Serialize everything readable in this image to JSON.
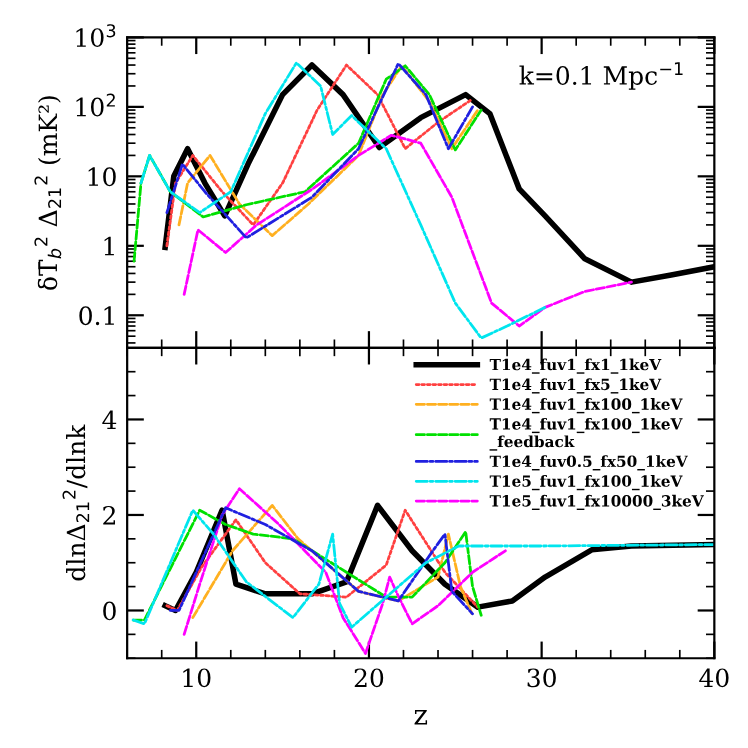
{
  "chart_data": [
    {
      "type": "line",
      "ylabel": "δT̄$_{b}$$^{2}$ Δ$_{21}$$^{2}$ (mK²)",
      "log": "y",
      "xlim": [
        6,
        40
      ],
      "xticks": [
        10,
        20,
        30,
        40
      ],
      "ylim": [
        0.034,
        1000
      ],
      "yticks": [
        0.1,
        1,
        10,
        {
          "value": 100,
          "label": "10$^{2}$"
        },
        {
          "value": 1000,
          "label": "10$^{3}$"
        }
      ],
      "tick_labels": "y",
      "grid": false,
      "legend": false,
      "annotations": [
        "k=0.1 Mpc$^{−1}$"
      ],
      "series": [
        {
          "color": "#000000",
          "line_style": "solid",
          "x": [
            8.2,
            8.7,
            9.5,
            10.5,
            11.65,
            13,
            15,
            16.7,
            18.5,
            20.6,
            23,
            25.6,
            27,
            28.7,
            30.2,
            32.5,
            35.2,
            37.5,
            40
          ],
          "values": [
            0.95,
            10,
            25,
            8,
            2.7,
            15,
            150,
            400,
            150,
            26,
            70,
            150,
            80,
            6.6,
            2.7,
            0.65,
            0.3,
            0.38,
            0.5
          ]
        },
        {
          "color": "#ff4040",
          "line_style": "dotted",
          "x": [
            8.3,
            8.8,
            9.8,
            11.5,
            13.3,
            15,
            17,
            18.7,
            20.5,
            22.1,
            24,
            26
          ],
          "values": [
            1,
            8,
            20,
            6,
            2,
            8,
            90,
            400,
            150,
            25,
            60,
            130
          ]
        },
        {
          "color": "#ffb020",
          "line_style": "dashed",
          "x": [
            9,
            9.5,
            10.8,
            12.5,
            14.4,
            16.5,
            19.4,
            20.8,
            21.9,
            23.5,
            24.8,
            26.3
          ],
          "values": [
            2,
            8,
            20,
            4,
            1.4,
            4,
            20,
            150,
            390,
            120,
            25,
            90
          ]
        },
        {
          "color": "#00e000",
          "line_style": "dashed",
          "x": [
            6.4,
            6.8,
            7.3,
            8.5,
            10.4,
            12.9,
            16.3,
            19.4,
            21,
            22.1,
            23.5,
            25,
            26.5
          ],
          "values": [
            0.6,
            8,
            20,
            6,
            2.6,
            3.9,
            6,
            30,
            250,
            390,
            150,
            24,
            90
          ]
        },
        {
          "color": "#2020e0",
          "line_style": "dashdot",
          "x": [
            8.3,
            9.2,
            10.5,
            12.9,
            16.7,
            19.4,
            21.7,
            23.3,
            24.6,
            26
          ],
          "values": [
            3,
            15,
            6,
            1.3,
            5,
            25,
            420,
            150,
            25,
            100
          ]
        },
        {
          "color": "#00e5ee",
          "line_style": "dashdot",
          "x": [
            6.8,
            7.3,
            8.5,
            10.2,
            12,
            14,
            15.8,
            17.2,
            17.9,
            19,
            21,
            23,
            25,
            26.5,
            28,
            30.2
          ],
          "values": [
            8,
            20,
            6,
            3,
            6,
            80,
            430,
            200,
            40,
            75,
            25,
            2,
            0.15,
            0.047,
            0.07,
            0.13
          ]
        },
        {
          "color": "#ff00ff",
          "line_style": "dashed",
          "x": [
            9.3,
            10.1,
            11.7,
            13.5,
            16.7,
            19.4,
            21.3,
            23,
            24.8,
            27.1,
            28.7,
            30.2,
            32.5,
            35.2
          ],
          "values": [
            0.2,
            1.7,
            0.8,
            2,
            6.5,
            20,
            39,
            30,
            5,
            0.15,
            0.07,
            0.13,
            0.22,
            0.3
          ]
        }
      ]
    },
    {
      "type": "line",
      "xlabel": "z",
      "ylabel": "dlnΔ$_{21}$$^{2}$/dlnk",
      "xlim": [
        6,
        40
      ],
      "xticks": [
        10,
        20,
        30,
        40
      ],
      "ylim": [
        -1,
        5.5
      ],
      "yticks": [
        0,
        2,
        4
      ],
      "grid": false,
      "legend": "top right",
      "series": [
        {
          "name": "T1e4_fuv1_fx1_1keV",
          "color": "#000000",
          "line_style": "solid",
          "x": [
            8.2,
            8.8,
            10,
            11.5,
            12.3,
            14,
            16.7,
            18.7,
            20.5,
            22.5,
            24.4,
            26.3,
            28.3,
            30.2,
            32.9,
            35.2,
            40
          ],
          "values": [
            0.1,
            0,
            0.8,
            2.1,
            0.55,
            0.35,
            0.35,
            0.6,
            2.2,
            1.25,
            0.55,
            0.07,
            0.2,
            0.7,
            1.27,
            1.35,
            1.38
          ]
        },
        {
          "name": "T1e4_fuv1_fx5_1keV",
          "color": "#ff4040",
          "line_style": "dotted",
          "x": [
            8.3,
            8.9,
            10.3,
            12.3,
            14,
            16,
            18.7,
            21,
            22.1,
            24.4,
            26.3
          ],
          "values": [
            0.1,
            0,
            0.9,
            1.9,
            1,
            0.35,
            0.28,
            0.95,
            2.1,
            0.8,
            0.07
          ]
        },
        {
          "name": "T1e4_fuv1_fx100_1keV",
          "color": "#ffb020",
          "line_style": "dashed",
          "x": [
            9.8,
            12.1,
            14.4,
            15.9,
            19.4,
            21.7,
            24,
            24.6,
            25.3,
            26
          ],
          "values": [
            -0.15,
            1.25,
            2.2,
            1.5,
            0.4,
            0.2,
            0.7,
            1.6,
            0.5,
            -0.1
          ]
        },
        {
          "name": "T1e4_fuv1_fx100_1keV\n_feedback",
          "color": "#00e000",
          "line_style": "dashed",
          "x": [
            6.35,
            7,
            10.2,
            11.7,
            13.3,
            15.6,
            18.7,
            21,
            22.5,
            24.4,
            25.6,
            26,
            26.5
          ],
          "values": [
            -0.2,
            -0.2,
            2.1,
            1.8,
            1.6,
            1.5,
            0.8,
            0.28,
            0.28,
            1,
            1.65,
            0.5,
            -0.1
          ]
        },
        {
          "name": "T1e4_fuv0.5_fx50_1keV",
          "color": "#2020e0",
          "line_style": "dashdot",
          "x": [
            8.5,
            9,
            11.7,
            14,
            16.7,
            19.4,
            21.7,
            23.7,
            24.4,
            24.8,
            26
          ],
          "values": [
            0,
            0,
            2.15,
            1.8,
            1.25,
            0.4,
            0.2,
            1.25,
            1.6,
            0.4,
            -0.07
          ]
        },
        {
          "name": "T1e5_fuv1_fx100_1keV",
          "color": "#00e5ee",
          "line_style": "dashdot",
          "x": [
            6.35,
            7,
            9.8,
            11,
            12.9,
            15.6,
            17.1,
            17.9,
            18.3,
            19,
            21,
            23.3,
            25.2,
            30,
            40
          ],
          "values": [
            -0.2,
            -0.28,
            2.1,
            1.6,
            0.6,
            -0.15,
            0.55,
            1.6,
            0.15,
            -0.35,
            0.28,
            1,
            1.35,
            1.35,
            1.38
          ]
        },
        {
          "name": "T1e5_fuv1_fx10000_3keV",
          "color": "#ff00ff",
          "line_style": "dashed",
          "x": [
            9.3,
            10.2,
            11.5,
            12.5,
            14.8,
            17.5,
            18.5,
            19.8,
            20.8,
            21.2,
            21.7,
            22.5,
            24,
            26,
            27.9
          ],
          "values": [
            -0.5,
            0.55,
            2,
            2.55,
            1.8,
            0.8,
            -0.15,
            -0.9,
            0.15,
            0.7,
            0.3,
            -0.28,
            0.1,
            0.8,
            1.25
          ]
        }
      ]
    }
  ]
}
